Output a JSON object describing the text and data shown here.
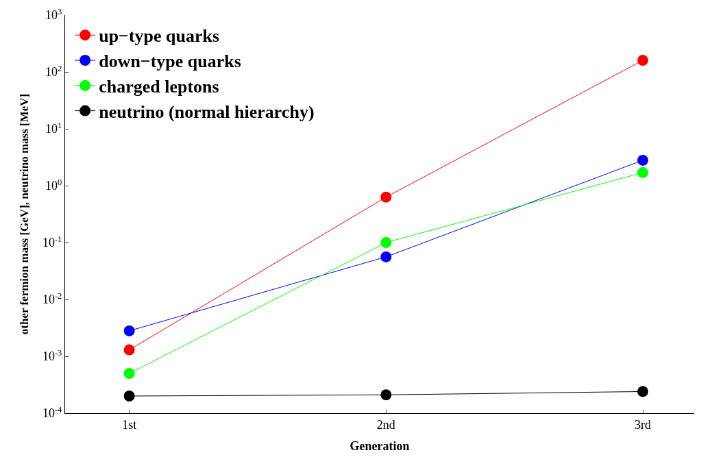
{
  "chart_data": {
    "type": "line",
    "xlabel": "Generation",
    "ylabel": "other fermion mass [GeV], neutrino mass [MeV]",
    "categories": [
      "1st",
      "2nd",
      "3rd"
    ],
    "series": [
      {
        "name": "up−type quarks",
        "color": "#ff0000",
        "values": [
          0.0013,
          0.63,
          160
        ]
      },
      {
        "name": "down−type quarks",
        "color": "#0000ff",
        "values": [
          0.0028,
          0.056,
          2.8
        ]
      },
      {
        "name": "charged leptons",
        "color": "#00ff00",
        "values": [
          0.0005,
          0.1,
          1.7
        ]
      },
      {
        "name": "neutrino (normal hierarchy)",
        "color": "#000000",
        "values": [
          0.0002,
          0.00021,
          0.00024
        ]
      }
    ],
    "log": "y",
    "ylim": [
      0.0001,
      1000
    ],
    "yticks": [
      {
        "value": 0.0001,
        "label": "10$^{-4}$"
      },
      {
        "value": 0.001,
        "label": "10$^{-3}$"
      },
      {
        "value": 0.01,
        "label": "10$^{-2}$"
      },
      {
        "value": 0.1,
        "label": "10$^{-1}$"
      },
      {
        "value": 1,
        "label": "10$^{0}$"
      },
      {
        "value": 10,
        "label": "10$^{1}$"
      },
      {
        "value": 100,
        "label": "10$^{2}$"
      },
      {
        "value": 1000,
        "label": "10$^{3}$"
      }
    ],
    "marker": "circle",
    "legend": "top left"
  }
}
